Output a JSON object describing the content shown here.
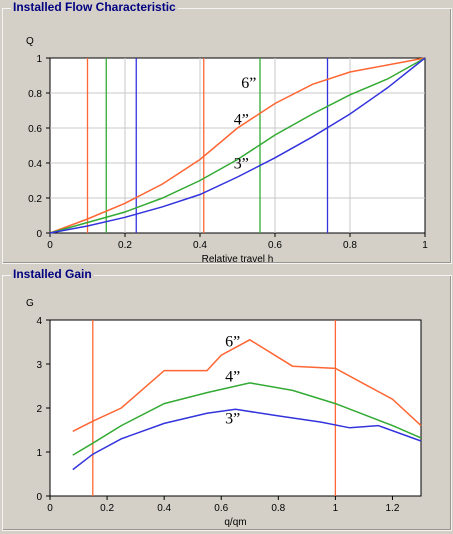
{
  "chart_data": [
    {
      "type": "line",
      "title": "Installed Flow Characteristic",
      "ylabel": "Q",
      "xlabel": "Relative travel h",
      "xlim": [
        0,
        1
      ],
      "ylim": [
        0,
        1
      ],
      "xticks": [
        0,
        0.2,
        0.4,
        0.6,
        0.8,
        1
      ],
      "xtick_labels": [
        "0",
        "0.2",
        "0.4",
        "0.6",
        "0.8",
        "1"
      ],
      "yticks": [
        0,
        0.2,
        0.4,
        0.6,
        0.8,
        1
      ],
      "ytick_labels": [
        "0",
        "0.2",
        "0.4",
        "0.6",
        "0.8",
        "1"
      ],
      "grid": true,
      "series": [
        {
          "name": "6”",
          "color": "#ff6633",
          "x": [
            0,
            0.1,
            0.2,
            0.3,
            0.4,
            0.5,
            0.6,
            0.7,
            0.8,
            0.9,
            1.0
          ],
          "y": [
            0,
            0.08,
            0.17,
            0.28,
            0.42,
            0.6,
            0.74,
            0.85,
            0.92,
            0.96,
            1.0
          ]
        },
        {
          "name": "4”",
          "color": "#33aa33",
          "x": [
            0,
            0.1,
            0.2,
            0.3,
            0.4,
            0.5,
            0.6,
            0.7,
            0.8,
            0.9,
            1.0
          ],
          "y": [
            0,
            0.06,
            0.12,
            0.2,
            0.3,
            0.42,
            0.56,
            0.68,
            0.79,
            0.88,
            1.0
          ]
        },
        {
          "name": "3”",
          "color": "#3333dd",
          "x": [
            0,
            0.1,
            0.2,
            0.3,
            0.4,
            0.5,
            0.6,
            0.7,
            0.8,
            0.9,
            1.0
          ],
          "y": [
            0,
            0.04,
            0.09,
            0.15,
            0.22,
            0.32,
            0.43,
            0.55,
            0.68,
            0.83,
            1.0
          ]
        }
      ],
      "vlines": [
        {
          "x": 0.1,
          "color": "#ff6633"
        },
        {
          "x": 0.15,
          "color": "#33aa33"
        },
        {
          "x": 0.23,
          "color": "#3333dd"
        },
        {
          "x": 0.41,
          "color": "#ff6633"
        },
        {
          "x": 0.56,
          "color": "#33aa33"
        },
        {
          "x": 0.74,
          "color": "#3333dd"
        }
      ],
      "annotations": [
        {
          "text": "6”",
          "x": 0.53,
          "y": 0.83
        },
        {
          "text": "4”",
          "x": 0.51,
          "y": 0.62
        },
        {
          "text": "3”",
          "x": 0.51,
          "y": 0.37
        }
      ]
    },
    {
      "type": "line",
      "title": "Installed Gain",
      "ylabel": "G",
      "xlabel": "q/qm",
      "xlim": [
        0,
        1.3
      ],
      "ylim": [
        0,
        4
      ],
      "xticks": [
        0,
        0.2,
        0.4,
        0.6,
        0.8,
        1,
        1.2
      ],
      "xtick_labels": [
        "0",
        "0.2",
        "0.4",
        "0.6",
        "0.8",
        "1",
        "1.2"
      ],
      "yticks": [
        0,
        1,
        2,
        3,
        4
      ],
      "ytick_labels": [
        "0",
        "1",
        "2",
        "3",
        "4"
      ],
      "grid": false,
      "series": [
        {
          "name": "6”",
          "color": "#ff6633",
          "x": [
            0.08,
            0.15,
            0.25,
            0.4,
            0.55,
            0.6,
            0.7,
            0.85,
            1.0,
            1.1,
            1.2,
            1.3
          ],
          "y": [
            1.47,
            1.7,
            2.0,
            2.85,
            2.85,
            3.2,
            3.55,
            2.95,
            2.9,
            2.55,
            2.2,
            1.6
          ]
        },
        {
          "name": "4”",
          "color": "#33aa33",
          "x": [
            0.08,
            0.15,
            0.25,
            0.4,
            0.55,
            0.7,
            0.85,
            1.0,
            1.1,
            1.2,
            1.3
          ],
          "y": [
            0.93,
            1.2,
            1.6,
            2.1,
            2.35,
            2.57,
            2.4,
            2.1,
            1.85,
            1.6,
            1.32
          ]
        },
        {
          "name": "3”",
          "color": "#3333dd",
          "x": [
            0.08,
            0.15,
            0.25,
            0.4,
            0.55,
            0.65,
            0.8,
            0.95,
            1.05,
            1.15,
            1.3
          ],
          "y": [
            0.6,
            0.95,
            1.3,
            1.65,
            1.88,
            1.97,
            1.82,
            1.68,
            1.55,
            1.6,
            1.25
          ]
        }
      ],
      "vlines": [
        {
          "x": 0.15,
          "color": "#ff6633"
        },
        {
          "x": 1.0,
          "color": "#ff6633"
        }
      ],
      "annotations": [
        {
          "text": "6”",
          "x": 0.64,
          "y": 3.4
        },
        {
          "text": "4”",
          "x": 0.64,
          "y": 2.6
        },
        {
          "text": "3”",
          "x": 0.64,
          "y": 1.65
        }
      ]
    }
  ]
}
